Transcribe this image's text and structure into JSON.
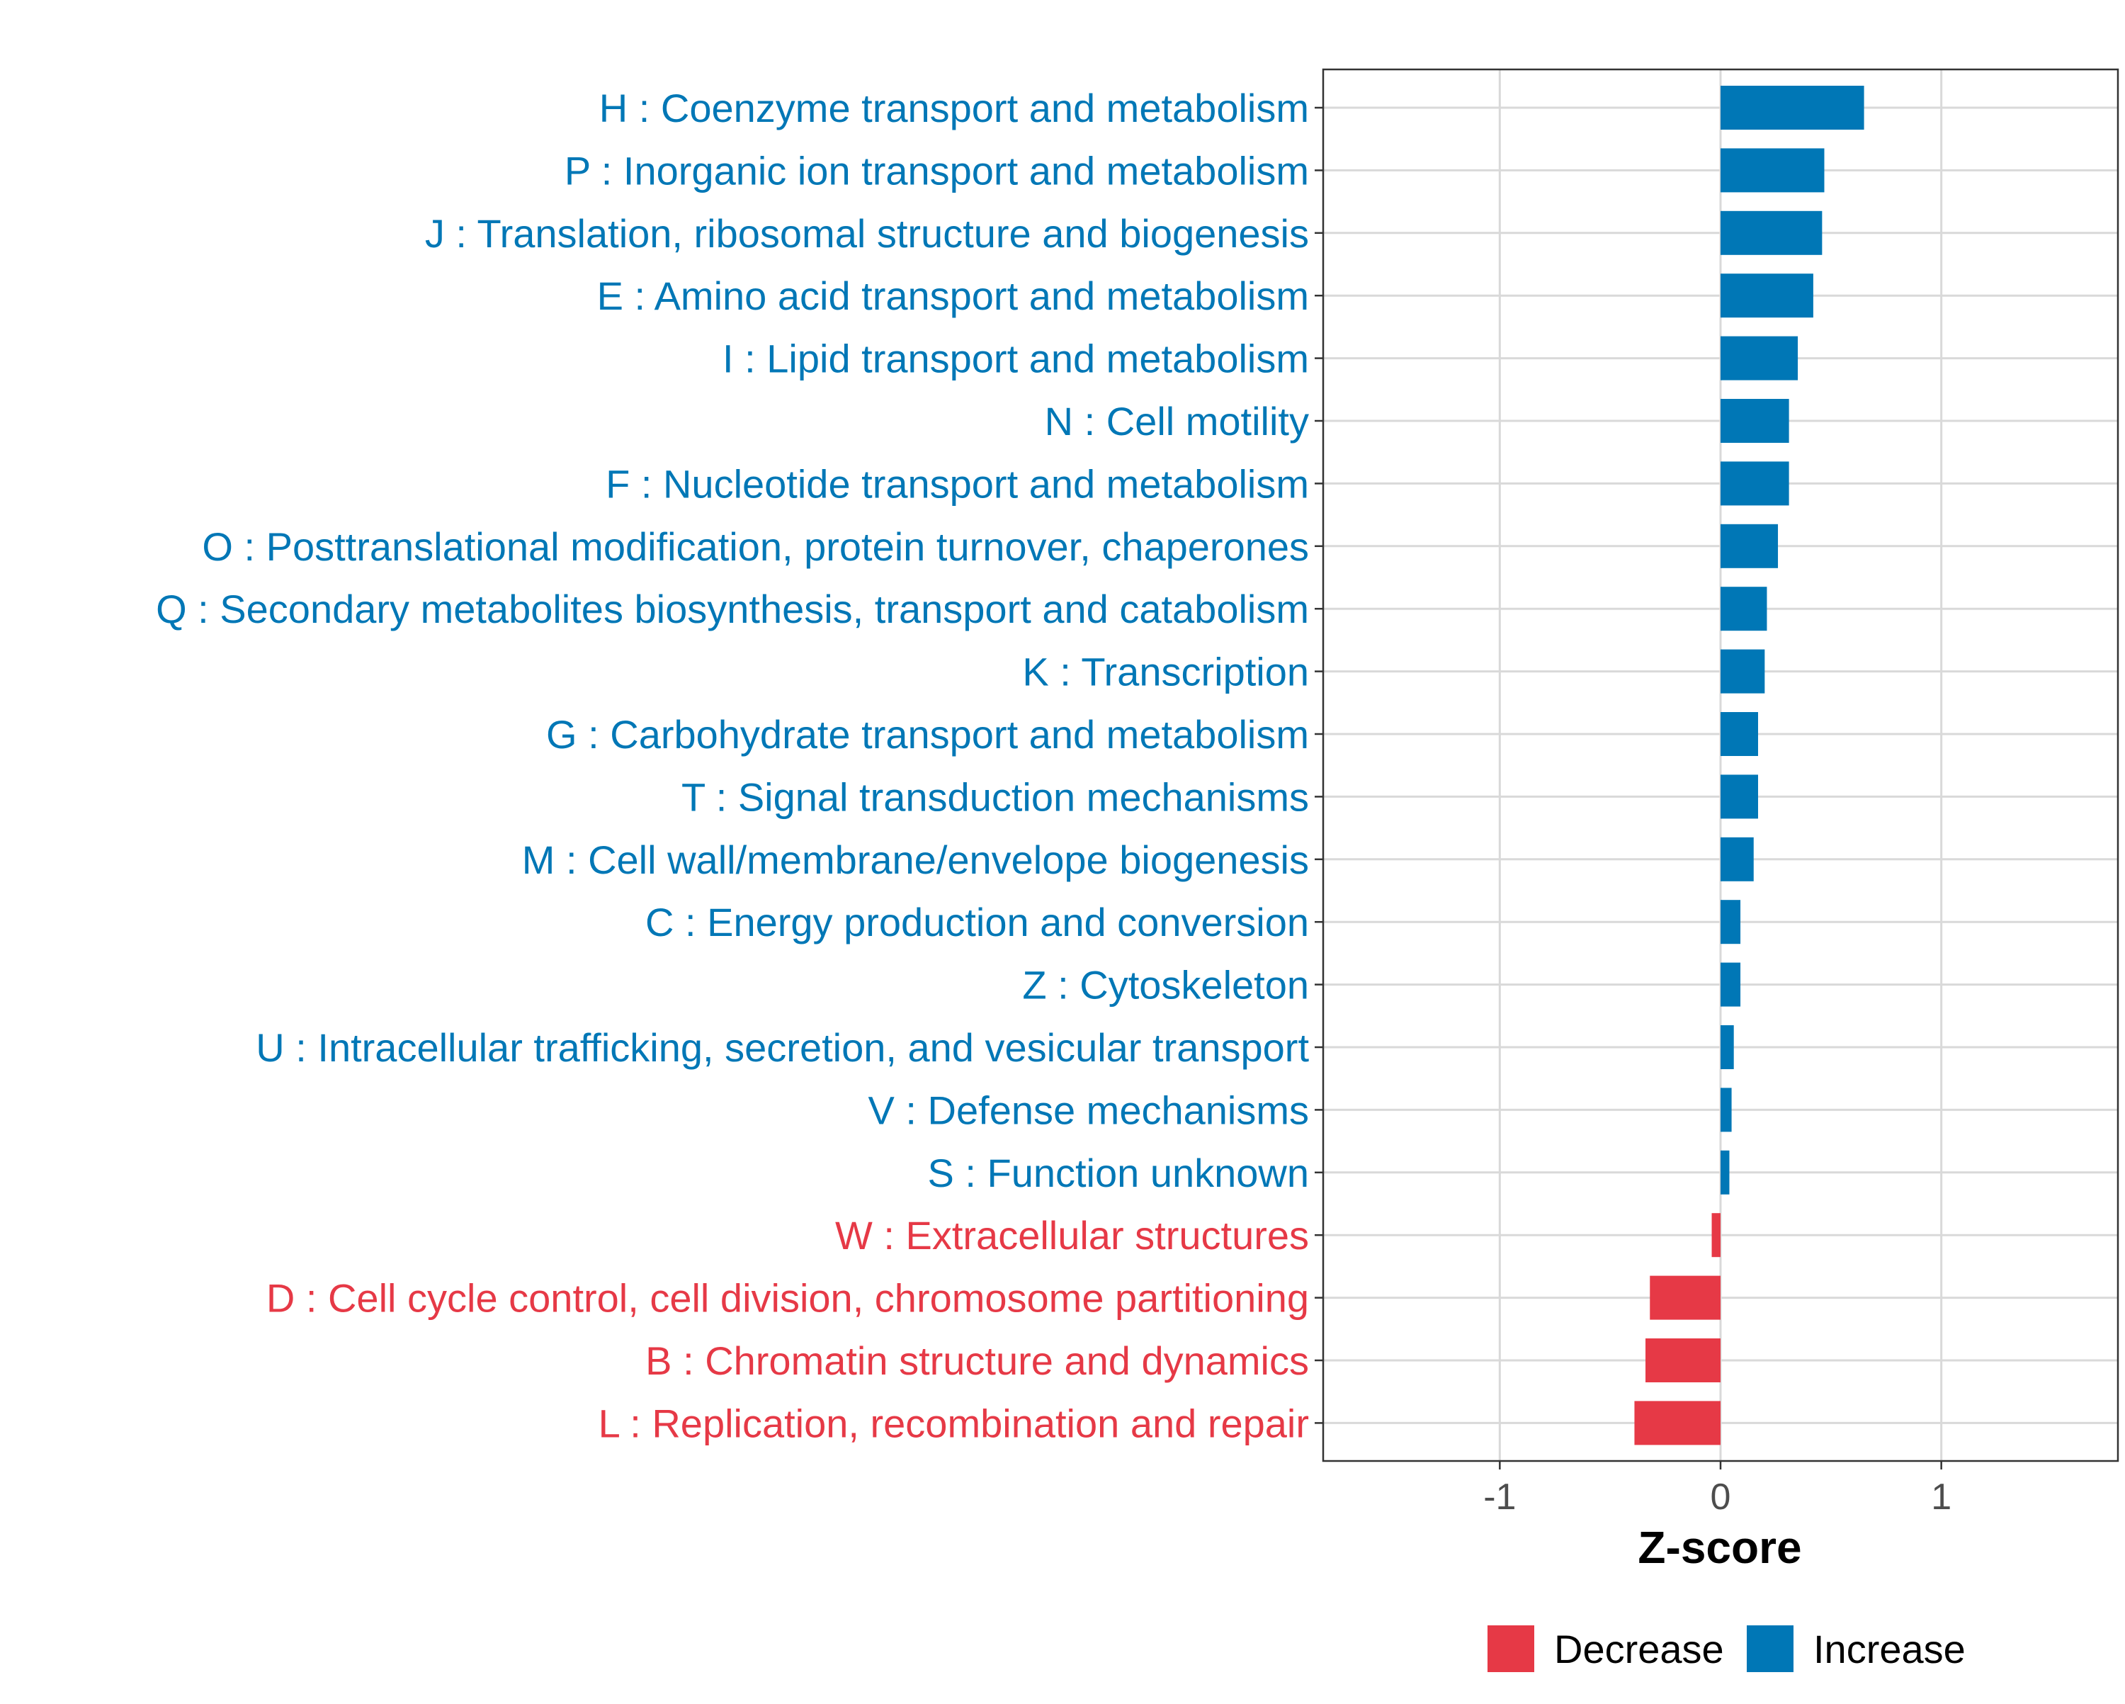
{
  "chart_data": {
    "type": "bar",
    "orientation": "horizontal",
    "xlabel": "Z-score",
    "ylabel": "",
    "xlim": [
      -1.8,
      1.8
    ],
    "xticks": [
      -1,
      0,
      1
    ],
    "xtick_labels": [
      "-1",
      "0",
      "1"
    ],
    "grid": true,
    "legend_position": "bottom",
    "legend": [
      {
        "name": "Decrease",
        "color": "#e63946"
      },
      {
        "name": "Increase",
        "color": "#0077b6"
      }
    ],
    "categories": [
      {
        "label": "H : Coenzyme transport and metabolism",
        "value": 0.65,
        "group": "Increase"
      },
      {
        "label": "P : Inorganic ion transport and metabolism",
        "value": 0.47,
        "group": "Increase"
      },
      {
        "label": "J : Translation, ribosomal structure and biogenesis",
        "value": 0.46,
        "group": "Increase"
      },
      {
        "label": "E : Amino acid transport and metabolism",
        "value": 0.42,
        "group": "Increase"
      },
      {
        "label": "I : Lipid transport and metabolism",
        "value": 0.35,
        "group": "Increase"
      },
      {
        "label": "N : Cell motility",
        "value": 0.31,
        "group": "Increase"
      },
      {
        "label": "F : Nucleotide transport and metabolism",
        "value": 0.31,
        "group": "Increase"
      },
      {
        "label": "O : Posttranslational modification, protein turnover, chaperones",
        "value": 0.26,
        "group": "Increase"
      },
      {
        "label": "Q : Secondary metabolites biosynthesis, transport and catabolism",
        "value": 0.21,
        "group": "Increase"
      },
      {
        "label": "K : Transcription",
        "value": 0.2,
        "group": "Increase"
      },
      {
        "label": "G : Carbohydrate transport and metabolism",
        "value": 0.17,
        "group": "Increase"
      },
      {
        "label": "T : Signal transduction mechanisms",
        "value": 0.17,
        "group": "Increase"
      },
      {
        "label": "M : Cell wall/membrane/envelope biogenesis",
        "value": 0.15,
        "group": "Increase"
      },
      {
        "label": "C : Energy production and conversion",
        "value": 0.09,
        "group": "Increase"
      },
      {
        "label": "Z : Cytoskeleton",
        "value": 0.09,
        "group": "Increase"
      },
      {
        "label": "U : Intracellular trafficking, secretion, and vesicular transport",
        "value": 0.06,
        "group": "Increase"
      },
      {
        "label": "V : Defense mechanisms",
        "value": 0.05,
        "group": "Increase"
      },
      {
        "label": "S : Function unknown",
        "value": 0.04,
        "group": "Increase"
      },
      {
        "label": "W : Extracellular structures",
        "value": -0.04,
        "group": "Decrease"
      },
      {
        "label": "D : Cell cycle control, cell division, chromosome partitioning",
        "value": -0.32,
        "group": "Decrease"
      },
      {
        "label": "B : Chromatin structure and dynamics",
        "value": -0.34,
        "group": "Decrease"
      },
      {
        "label": "L : Replication, recombination and repair",
        "value": -0.39,
        "group": "Decrease"
      }
    ]
  }
}
